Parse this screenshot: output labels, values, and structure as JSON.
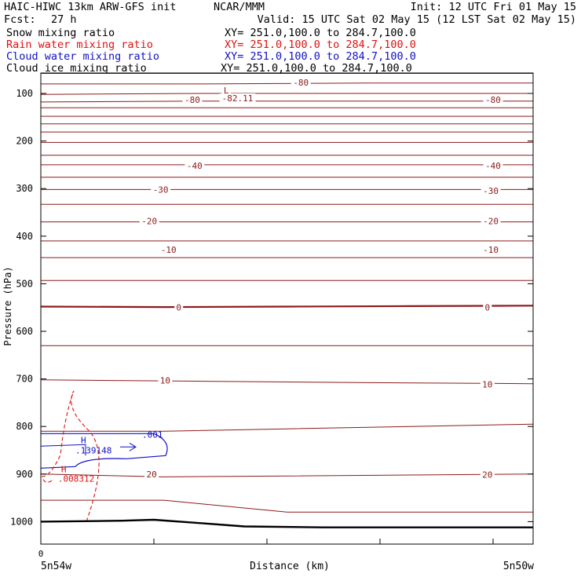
{
  "header": {
    "model": "HAIC-HIWC 13km ARW-GFS init",
    "org": "NCAR/MMM",
    "init": "Init: 12 UTC Fri 01 May 15",
    "fcst_label": "Fcst:",
    "fcst_value": "27 h",
    "valid": "Valid: 15 UTC Sat 02 May 15 (12 LST Sat 02 May 15)",
    "xy": "XY= 251.0,100.0 to 284.7,100.0"
  },
  "fields": [
    {
      "label": "Snow mixing ratio",
      "color": "#000000"
    },
    {
      "label": "Rain water mixing ratio",
      "color": "#e01010"
    },
    {
      "label": "Cloud water mixing ratio",
      "color": "#1010c8"
    },
    {
      "label": "Cloud ice mixing ratio",
      "color": "#000000"
    }
  ],
  "chart_data": {
    "type": "line",
    "xlabel": "Distance (km)",
    "ylabel": "Pressure (hPa)",
    "y_ticks": [
      "100",
      "200",
      "300",
      "400",
      "500",
      "600",
      "700",
      "800",
      "900",
      "1000"
    ],
    "x_tick_values": [
      0,
      1,
      2,
      3,
      4
    ],
    "x_tick_label": "0",
    "x_endpoints": {
      "left": "5n54w",
      "right": "5n50w"
    },
    "ylim": [
      1050,
      50
    ],
    "contour_labels": [
      {
        "text": "-80",
        "x": 2.3,
        "p": 77
      },
      {
        "text": "-80",
        "x": 1.34,
        "p": 113
      },
      {
        "text": "-82.11",
        "x": 1.74,
        "p": 110
      },
      {
        "text": "L",
        "x": 1.64,
        "p": 93
      },
      {
        "text": "-80",
        "x": 4.0,
        "p": 113
      },
      {
        "text": "-40",
        "x": 1.36,
        "p": 252
      },
      {
        "text": "-40",
        "x": 4.0,
        "p": 252
      },
      {
        "text": "-30",
        "x": 1.06,
        "p": 302
      },
      {
        "text": "-30",
        "x": 3.98,
        "p": 305
      },
      {
        "text": "-20",
        "x": 0.96,
        "p": 368
      },
      {
        "text": "-20",
        "x": 3.98,
        "p": 368
      },
      {
        "text": "-10",
        "x": 1.13,
        "p": 428
      },
      {
        "text": "-10",
        "x": 3.98,
        "p": 428
      },
      {
        "text": "0",
        "x": 1.22,
        "p": 550
      },
      {
        "text": "0",
        "x": 3.95,
        "p": 550
      },
      {
        "text": "10",
        "x": 1.1,
        "p": 703
      },
      {
        "text": "10",
        "x": 3.95,
        "p": 711
      },
      {
        "text": "20",
        "x": 0.98,
        "p": 900
      },
      {
        "text": "20",
        "x": 3.95,
        "p": 901
      }
    ],
    "contour_lines": [
      {
        "p": [
          58,
          58,
          58,
          58
        ]
      },
      {
        "p": [
          80,
          80,
          78,
          78
        ]
      },
      {
        "p": [
          102,
          100,
          100,
          100
        ]
      },
      {
        "p": [
          118,
          116,
          116,
          116
        ]
      },
      {
        "p": [
          130,
          130,
          130,
          130
        ]
      },
      {
        "p": [
          148,
          148,
          148,
          148
        ]
      },
      {
        "p": [
          164,
          164,
          164,
          164
        ]
      },
      {
        "p": [
          181,
          181,
          181,
          181
        ]
      },
      {
        "p": [
          203,
          203,
          203,
          203
        ]
      },
      {
        "p": [
          230,
          230,
          230,
          230
        ]
      },
      {
        "p": [
          250,
          250,
          250,
          250
        ]
      },
      {
        "p": [
          276,
          276,
          276,
          276
        ]
      },
      {
        "p": [
          302,
          302,
          302,
          302
        ]
      },
      {
        "p": [
          333,
          333,
          333,
          333
        ]
      },
      {
        "p": [
          370,
          370,
          370,
          370
        ]
      },
      {
        "p": [
          410,
          410,
          410,
          410
        ]
      },
      {
        "p": [
          445,
          445,
          445,
          445
        ]
      },
      {
        "p": [
          493,
          493,
          493,
          493
        ]
      },
      {
        "p": [
          548,
          549,
          548,
          547,
          546
        ]
      },
      {
        "p": [
          630,
          630,
          630,
          630
        ]
      },
      {
        "p": [
          702,
          705,
          708,
          710
        ]
      },
      {
        "p": [
          810,
          810,
          805,
          800,
          795
        ]
      },
      {
        "p": [
          900,
          906,
          904,
          902,
          900
        ]
      },
      {
        "p": [
          955,
          955,
          980,
          980,
          980
        ]
      }
    ],
    "terrain": [
      {
        "x": 0.0,
        "p": 1000
      },
      {
        "x": 0.72,
        "p": 998
      },
      {
        "x": 1.0,
        "p": 996
      },
      {
        "x": 1.4,
        "p": 1003
      },
      {
        "x": 1.8,
        "p": 1010
      },
      {
        "x": 2.5,
        "p": 1012
      },
      {
        "x": 4.35,
        "p": 1012
      }
    ],
    "cloud_water": {
      "label_max": "H",
      "label_value": ".139148",
      "contour_label": ".001",
      "max_x": 0.34,
      "max_p": 848
    },
    "rain_water": {
      "label_max": "H",
      "label_value": ".008312",
      "max_x": 0.18,
      "max_p": 893
    }
  }
}
